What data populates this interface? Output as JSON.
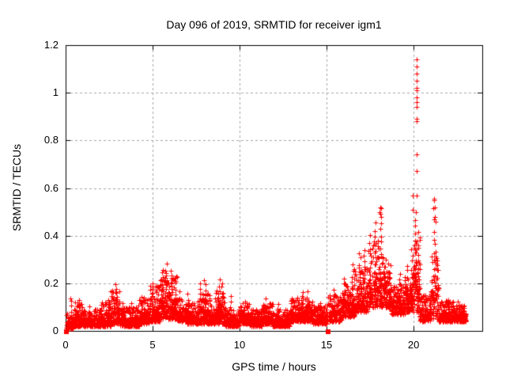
{
  "chart_data": {
    "type": "scatter",
    "title": "Day 096 of 2019, SRMTID for receiver igm1",
    "xlabel": "GPS time / hours",
    "ylabel": "SRMTID / TECUs",
    "xlim": [
      0,
      23.95
    ],
    "ylim": [
      0,
      1.2
    ],
    "xticks": [
      [
        0,
        "0"
      ],
      [
        5,
        "5"
      ],
      [
        10,
        "10"
      ],
      [
        15,
        "15"
      ],
      [
        20,
        "20"
      ]
    ],
    "yticks": [
      [
        0,
        "0"
      ],
      [
        0.2,
        "0.2"
      ],
      [
        0.4,
        "0.4"
      ],
      [
        0.6,
        "0.6"
      ],
      [
        0.8,
        "0.8"
      ],
      [
        1,
        "1"
      ],
      [
        1.2,
        "1.2"
      ]
    ],
    "grid": true,
    "legend_position": "none",
    "marker": "plus",
    "marker_color": "#ff0000",
    "grid_color": "#a6a6a6",
    "border_color": "#000000",
    "background": "#ffffff",
    "sample_interval_hours": 0.00833,
    "band_segments": [
      [
        0.05,
        0.5,
        0.01,
        0.08
      ],
      [
        0.5,
        0.95,
        0.02,
        0.12
      ],
      [
        0.95,
        2.0,
        0.02,
        0.09
      ],
      [
        2.0,
        2.6,
        0.02,
        0.12
      ],
      [
        2.6,
        3.1,
        0.03,
        0.17
      ],
      [
        3.1,
        4.2,
        0.02,
        0.1
      ],
      [
        4.2,
        4.8,
        0.03,
        0.14
      ],
      [
        4.8,
        5.4,
        0.04,
        0.19
      ],
      [
        5.4,
        6.4,
        0.05,
        0.24
      ],
      [
        6.4,
        7.0,
        0.04,
        0.14
      ],
      [
        7.0,
        7.6,
        0.03,
        0.12
      ],
      [
        7.6,
        8.3,
        0.03,
        0.17
      ],
      [
        8.3,
        8.6,
        0.03,
        0.11
      ],
      [
        8.6,
        9.2,
        0.03,
        0.17
      ],
      [
        9.2,
        10.0,
        0.02,
        0.09
      ],
      [
        10.0,
        10.6,
        0.03,
        0.12
      ],
      [
        10.6,
        11.3,
        0.02,
        0.09
      ],
      [
        11.3,
        11.9,
        0.03,
        0.12
      ],
      [
        11.9,
        12.9,
        0.02,
        0.09
      ],
      [
        12.9,
        14.2,
        0.04,
        0.14
      ],
      [
        14.2,
        15.05,
        0.03,
        0.11
      ],
      [
        15.1,
        15.9,
        0.04,
        0.15
      ],
      [
        15.9,
        16.6,
        0.06,
        0.2
      ],
      [
        16.6,
        17.4,
        0.08,
        0.27
      ],
      [
        17.4,
        18.25,
        0.1,
        0.38
      ],
      [
        18.25,
        18.7,
        0.1,
        0.28
      ],
      [
        18.7,
        19.5,
        0.07,
        0.2
      ],
      [
        19.5,
        20.0,
        0.08,
        0.26
      ],
      [
        20.0,
        20.35,
        0.08,
        0.45
      ],
      [
        20.35,
        21.0,
        0.04,
        0.15
      ],
      [
        21.0,
        21.45,
        0.05,
        0.35
      ],
      [
        21.45,
        22.3,
        0.04,
        0.13
      ],
      [
        22.3,
        23.0,
        0.04,
        0.11
      ]
    ],
    "spike_columns": [
      [
        0.3,
        0.14,
        5
      ],
      [
        0.77,
        0.13,
        5
      ],
      [
        1.35,
        0.1,
        4
      ],
      [
        2.05,
        0.12,
        5
      ],
      [
        2.45,
        0.13,
        5
      ],
      [
        2.9,
        0.19,
        8
      ],
      [
        3.25,
        0.12,
        4
      ],
      [
        3.8,
        0.11,
        4
      ],
      [
        4.35,
        0.15,
        5
      ],
      [
        5.0,
        0.2,
        7
      ],
      [
        5.55,
        0.26,
        9
      ],
      [
        5.75,
        0.28,
        10
      ],
      [
        6.1,
        0.26,
        9
      ],
      [
        6.3,
        0.22,
        7
      ],
      [
        6.6,
        0.16,
        5
      ],
      [
        7.0,
        0.15,
        5
      ],
      [
        7.75,
        0.2,
        7
      ],
      [
        8.0,
        0.21,
        8
      ],
      [
        8.8,
        0.21,
        8
      ],
      [
        9.0,
        0.2,
        7
      ],
      [
        9.5,
        0.15,
        5
      ],
      [
        10.3,
        0.13,
        4
      ],
      [
        11.5,
        0.13,
        4
      ],
      [
        12.2,
        0.11,
        4
      ],
      [
        13.6,
        0.17,
        6
      ],
      [
        13.9,
        0.16,
        5
      ],
      [
        14.6,
        0.12,
        4
      ],
      [
        15.4,
        0.17,
        6
      ],
      [
        16.0,
        0.22,
        7
      ],
      [
        16.5,
        0.28,
        8
      ],
      [
        16.9,
        0.33,
        9
      ],
      [
        17.15,
        0.34,
        9
      ],
      [
        17.5,
        0.4,
        10
      ],
      [
        17.8,
        0.45,
        11
      ],
      [
        18.1,
        0.52,
        12
      ],
      [
        18.35,
        0.3,
        8
      ],
      [
        18.6,
        0.28,
        7
      ],
      [
        19.2,
        0.24,
        7
      ],
      [
        19.6,
        0.28,
        7
      ],
      [
        19.9,
        0.35,
        8
      ],
      [
        20.1,
        0.5,
        12
      ],
      [
        20.3,
        0.42,
        9
      ],
      [
        21.2,
        0.55,
        12
      ],
      [
        21.38,
        0.28,
        7
      ],
      [
        22.0,
        0.13,
        4
      ],
      [
        22.5,
        0.12,
        4
      ]
    ],
    "outlier_points": [
      [
        20.18,
        1.14
      ],
      [
        20.18,
        1.11
      ],
      [
        20.2,
        1.08
      ],
      [
        20.16,
        1.05
      ],
      [
        20.18,
        1.02
      ],
      [
        20.2,
        1.01
      ],
      [
        20.16,
        0.98
      ],
      [
        20.18,
        0.96
      ],
      [
        20.2,
        0.94
      ],
      [
        20.16,
        0.89
      ],
      [
        20.18,
        0.88
      ],
      [
        20.18,
        0.74
      ],
      [
        20.2,
        0.67
      ],
      [
        20.16,
        0.57
      ],
      [
        19.95,
        0.57
      ],
      [
        19.93,
        0.51
      ],
      [
        18.1,
        0.52
      ],
      [
        18.05,
        0.5
      ],
      [
        18.14,
        0.48
      ],
      [
        21.2,
        0.55
      ],
      [
        21.22,
        0.52
      ],
      [
        21.18,
        0.47
      ]
    ],
    "zero_square_points": [
      [
        0.05,
        0
      ],
      [
        15.1,
        0
      ]
    ],
    "data_start_hour": 0.05,
    "data_end_hour": 23.0
  }
}
